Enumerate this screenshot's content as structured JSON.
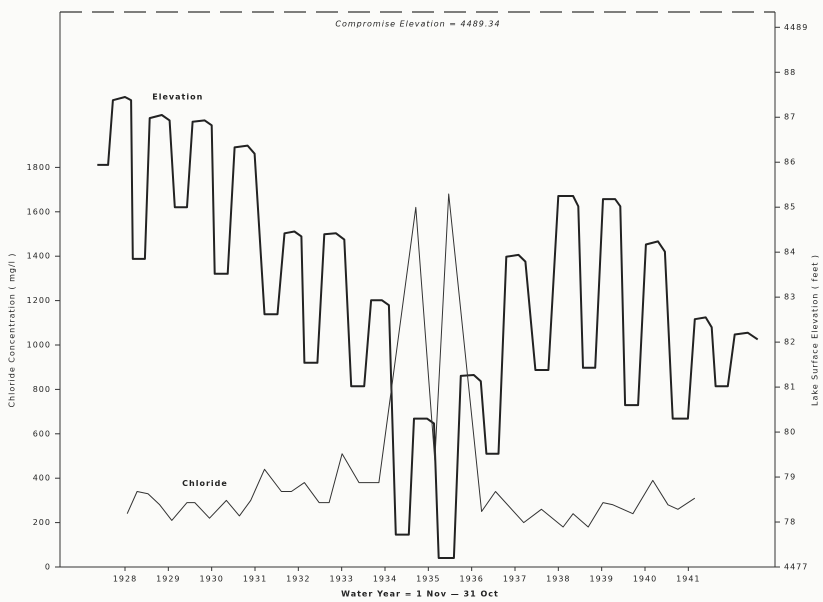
{
  "chart_data": {
    "type": "line",
    "title": "Compromise Elevation = 4489.34",
    "compromise_elevation": 4489.34,
    "x_label": "Water Year = 1 Nov — 31 Oct",
    "y_label": "Chloride Concentration ( mg/l )",
    "y2_label": "Lake Surface Elevation ( feet )",
    "xlim": [
      1926.5,
      1943
    ],
    "xticks": [
      1928,
      1929,
      1930,
      1931,
      1932,
      1933,
      1934,
      1935,
      1936,
      1937,
      1938,
      1939,
      1940,
      1941
    ],
    "ylim": [
      0,
      2500
    ],
    "yticks": [
      0,
      200,
      400,
      600,
      800,
      1000,
      1200,
      1400,
      1600,
      1800
    ],
    "y2lim": [
      4477,
      4489.34
    ],
    "y2ticks": [
      4477,
      {
        "value": 4478,
        "label": "78"
      },
      {
        "value": 4479,
        "label": "79"
      },
      {
        "value": 4480,
        "label": "80"
      },
      {
        "value": 4481,
        "label": "81"
      },
      {
        "value": 4482,
        "label": "82"
      },
      {
        "value": 4483,
        "label": "83"
      },
      {
        "value": 4484,
        "label": "84"
      },
      {
        "value": 4485,
        "label": "85"
      },
      {
        "value": 4486,
        "label": "86"
      },
      {
        "value": 4487,
        "label": "87"
      },
      {
        "value": 4488,
        "label": "88"
      },
      4489
    ],
    "series": [
      {
        "name": "Elevation",
        "color": "#222222",
        "axis": "y2",
        "x": [
          1927.36,
          1927.61,
          1927.72,
          1928.0,
          1928.14,
          1928.18,
          1928.46,
          1928.57,
          1928.85,
          1929.03,
          1929.15,
          1929.43,
          1929.56,
          1929.84,
          1930.0,
          1930.07,
          1930.37,
          1930.53,
          1930.83,
          1930.99,
          1931.22,
          1931.52,
          1931.68,
          1931.91,
          1932.07,
          1932.14,
          1932.44,
          1932.6,
          1932.87,
          1933.06,
          1933.22,
          1933.52,
          1933.68,
          1933.93,
          1934.09,
          1934.25,
          1934.55,
          1934.67,
          1934.97,
          1935.13,
          1935.24,
          1935.59,
          1935.75,
          1936.05,
          1936.21,
          1936.34,
          1936.62,
          1936.8,
          1937.08,
          1937.24,
          1937.47,
          1937.77,
          1938.0,
          1938.34,
          1938.46,
          1938.57,
          1938.85,
          1939.03,
          1939.31,
          1939.43,
          1939.54,
          1939.84,
          1940.02,
          1940.3,
          1940.46,
          1940.64,
          1940.99,
          1941.15,
          1941.4,
          1941.54,
          1941.63,
          1941.91,
          1942.07,
          1942.37,
          1942.6
        ],
        "values": [
          4485.94,
          4485.94,
          4487.38,
          4487.45,
          4487.38,
          4483.85,
          4483.85,
          4486.98,
          4487.05,
          4486.93,
          4485.0,
          4485.0,
          4486.9,
          4486.93,
          4486.82,
          4483.52,
          4483.52,
          4486.33,
          4486.37,
          4486.19,
          4482.62,
          4482.62,
          4484.42,
          4484.46,
          4484.35,
          4481.54,
          4481.54,
          4484.4,
          4484.42,
          4484.28,
          4481.02,
          4481.02,
          4482.93,
          4482.93,
          4482.82,
          4477.72,
          4477.72,
          4480.3,
          4480.3,
          4480.19,
          4477.2,
          4477.2,
          4481.25,
          4481.27,
          4481.13,
          4479.52,
          4479.52,
          4483.9,
          4483.94,
          4483.79,
          4481.38,
          4481.38,
          4485.25,
          4485.25,
          4485.02,
          4481.43,
          4481.43,
          4485.18,
          4485.18,
          4485.02,
          4480.6,
          4480.6,
          4484.17,
          4484.24,
          4484.01,
          4480.3,
          4480.3,
          4482.51,
          4482.55,
          4482.33,
          4481.02,
          4481.02,
          4482.17,
          4482.21,
          4482.06
        ]
      },
      {
        "name": "Chloride",
        "color": "#333333",
        "axis": "y",
        "x": [
          1928.05,
          1928.28,
          1928.53,
          1928.8,
          1929.08,
          1929.43,
          1929.61,
          1929.95,
          1930.34,
          1930.64,
          1930.9,
          1931.22,
          1931.61,
          1931.84,
          1932.14,
          1932.48,
          1932.71,
          1933.01,
          1933.4,
          1933.86,
          1934.71,
          1935.15,
          1935.47,
          1936.23,
          1936.55,
          1937.2,
          1937.61,
          1938.11,
          1938.34,
          1938.69,
          1939.03,
          1939.26,
          1939.72,
          1940.18,
          1940.53,
          1940.76,
          1941.15
        ],
        "values": [
          240,
          340,
          330,
          280,
          210,
          290,
          290,
          220,
          300,
          230,
          300,
          440,
          340,
          340,
          380,
          290,
          290,
          510,
          380,
          380,
          1620,
          480,
          1680,
          250,
          340,
          200,
          260,
          180,
          240,
          180,
          290,
          280,
          240,
          390,
          280,
          260,
          310
        ]
      }
    ]
  }
}
